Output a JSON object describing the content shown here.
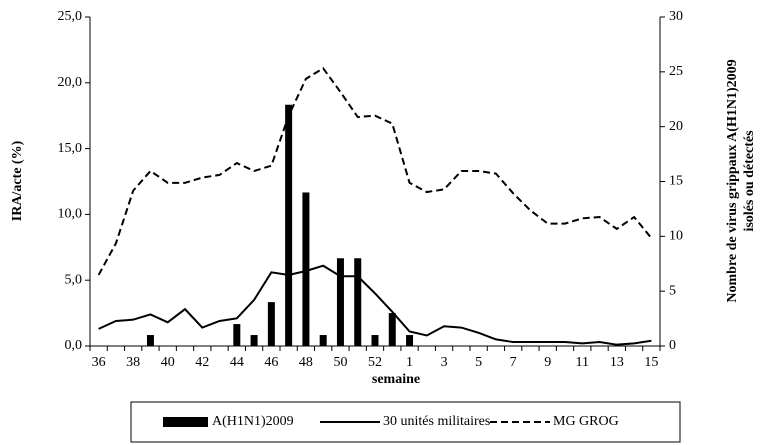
{
  "chart_data": {
    "type": "bar-line",
    "xlabel": "semaine",
    "ylabel": "IRA/acte (%)",
    "y2label": [
      "Nombre de virus grippaux A(H1N1)2009",
      "isolés ou détectés"
    ],
    "categories": [
      "36",
      null,
      "38",
      null,
      "40",
      null,
      "42",
      null,
      "44",
      null,
      "46",
      null,
      "48",
      null,
      "50",
      null,
      "52",
      null,
      "1",
      null,
      "3",
      null,
      "5",
      null,
      "7",
      null,
      "9",
      null,
      "11",
      null,
      "13",
      null,
      "15"
    ],
    "ylim": [
      0,
      25
    ],
    "yticks": [
      {
        "value": 0,
        "label": "0,0"
      },
      {
        "value": 5,
        "label": "5,0"
      },
      {
        "value": 10,
        "label": "10,0"
      },
      {
        "value": 15,
        "label": "15,0"
      },
      {
        "value": 20,
        "label": "20,0"
      },
      {
        "value": 25,
        "label": "25,0"
      }
    ],
    "y2lim": [
      0,
      30
    ],
    "y2ticks": [
      0,
      5,
      10,
      15,
      20,
      25,
      30
    ],
    "series": [
      {
        "name": "A(H1N1)2009",
        "type": "bar",
        "axis": "y2",
        "color": "#000000",
        "values": [
          0,
          0,
          0,
          1,
          0,
          0,
          0,
          0,
          2,
          1,
          4,
          22,
          14,
          1,
          8,
          8,
          1,
          3,
          1,
          0,
          0,
          0,
          0,
          0,
          0,
          0,
          0,
          0,
          0,
          0,
          0,
          0,
          0
        ]
      },
      {
        "name": "30 unités militaires",
        "type": "line",
        "dash": "solid",
        "color": "#000000",
        "values": [
          1.3,
          1.9,
          2.0,
          2.4,
          1.8,
          2.8,
          1.4,
          1.9,
          2.1,
          3.5,
          5.6,
          5.4,
          5.7,
          6.1,
          5.3,
          5.3,
          4.0,
          2.6,
          1.1,
          0.8,
          1.5,
          1.4,
          1.0,
          0.5,
          0.3,
          0.3,
          0.3,
          0.3,
          0.2,
          0.3,
          0.1,
          0.2,
          0.4
        ]
      },
      {
        "name": "MG GROG",
        "type": "line",
        "dash": "dashed",
        "color": "#000000",
        "values": [
          5.4,
          7.8,
          11.8,
          13.3,
          12.4,
          12.4,
          12.8,
          13.0,
          13.9,
          13.3,
          13.7,
          17.5,
          20.3,
          21.1,
          19.3,
          17.4,
          17.5,
          16.9,
          12.4,
          11.7,
          11.9,
          13.3,
          13.3,
          13.1,
          11.6,
          10.3,
          9.3,
          9.3,
          9.7,
          9.8,
          8.9,
          9.8,
          8.2
        ]
      }
    ],
    "legend": "bottom"
  }
}
